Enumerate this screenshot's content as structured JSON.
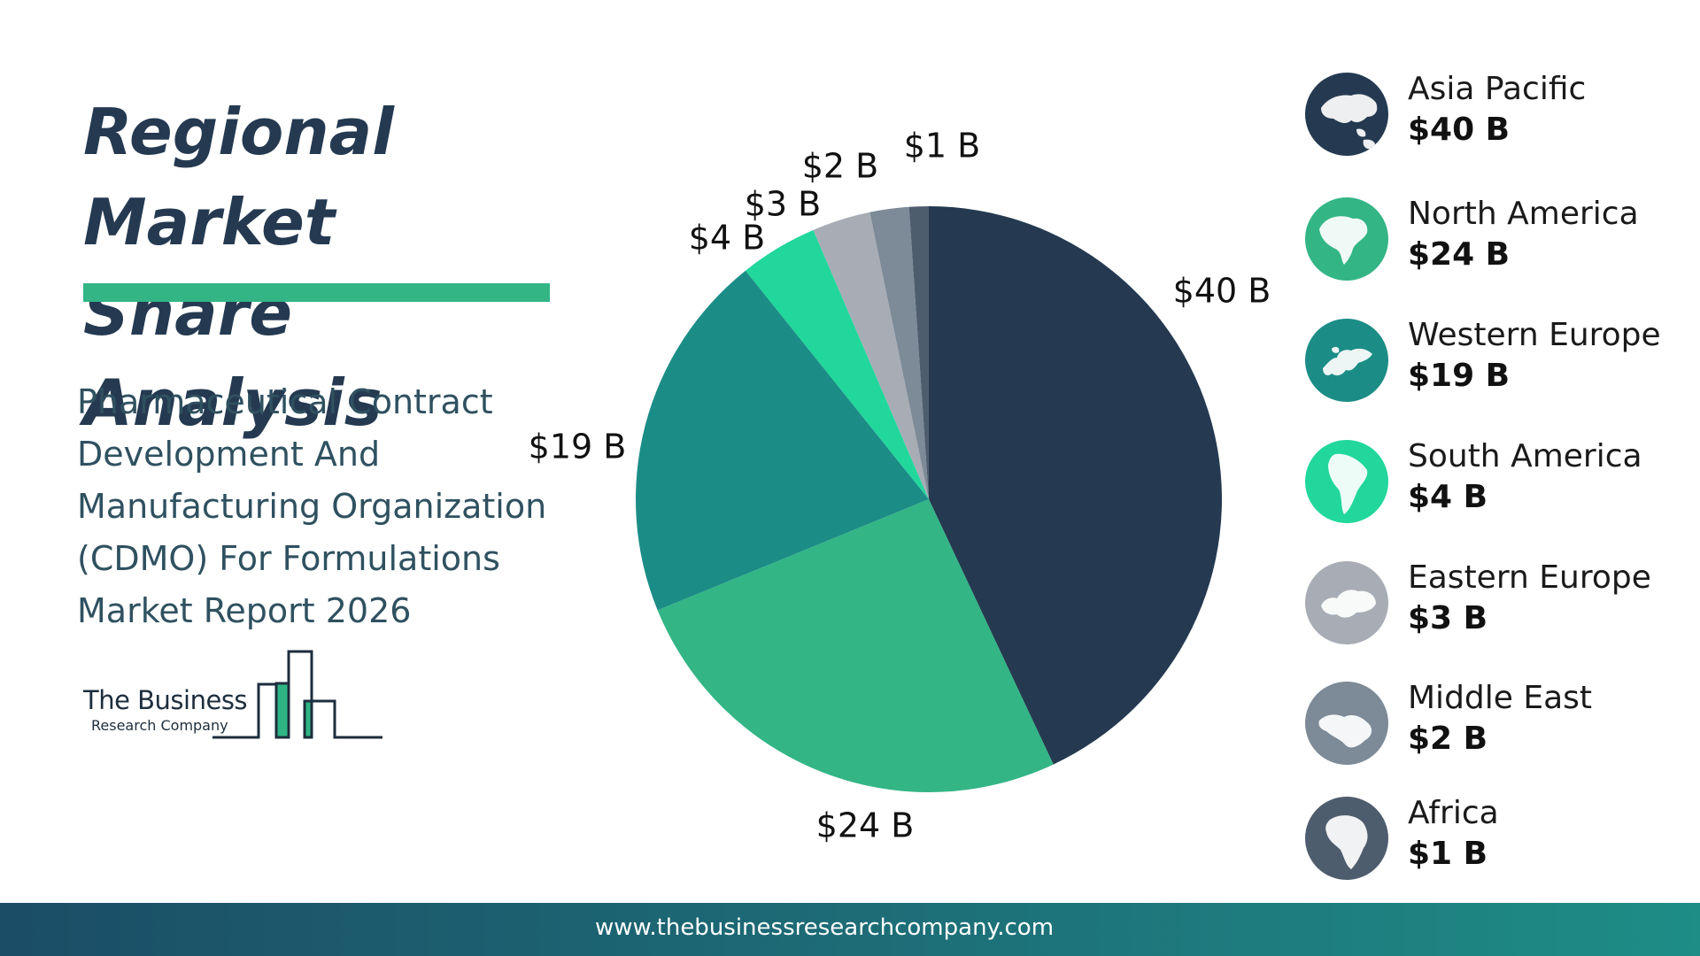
{
  "header": {
    "title_line1": "Regional Market",
    "title_line2": "Share Analysis",
    "subtitle_lines": [
      "Pharmaceutical Contract",
      "Development And",
      "Manufacturing Organization",
      "(CDMO) For Formulations",
      "Market Report 2026"
    ]
  },
  "logo": {
    "line1": "The Business",
    "line2": "Research Company"
  },
  "footer": {
    "url": "www.thebusinessresearchcompany.com"
  },
  "colors": {
    "title": "#253a51",
    "accent_bar": "#33b586",
    "subtitle": "#2f5160"
  },
  "chart_data": {
    "type": "pie",
    "unit": "B",
    "currency": "$",
    "slices": [
      {
        "name": "Asia Pacific",
        "value": 40,
        "label": "$40 B",
        "legend_value": "$40 B",
        "color": "#253a51",
        "icon": "asia-pacific-map-icon"
      },
      {
        "name": "North America",
        "value": 24,
        "label": "$24 B",
        "legend_value": "$24 B",
        "color": "#33b586",
        "icon": "north-america-map-icon"
      },
      {
        "name": "Western Europe",
        "value": 19,
        "label": "$19 B",
        "legend_value": "$19 B",
        "color": "#1b8d86",
        "icon": "western-europe-map-icon"
      },
      {
        "name": "South America",
        "value": 4,
        "label": "$4 B",
        "legend_value": "$4 B",
        "color": "#22d79c",
        "icon": "south-america-map-icon"
      },
      {
        "name": "Eastern Europe",
        "value": 3,
        "label": "$3 B",
        "legend_value": "$3 B",
        "color": "#a7acb5",
        "icon": "eastern-europe-map-icon"
      },
      {
        "name": "Middle East",
        "value": 2,
        "label": "$2 B",
        "legend_value": "$2 B",
        "color": "#7d8a97",
        "icon": "middle-east-map-icon"
      },
      {
        "name": "Africa",
        "value": 1,
        "label": "$1 B",
        "legend_value": "$1 B",
        "color": "#4e5d6d",
        "icon": "africa-map-icon"
      }
    ],
    "legend_placement": "right"
  }
}
